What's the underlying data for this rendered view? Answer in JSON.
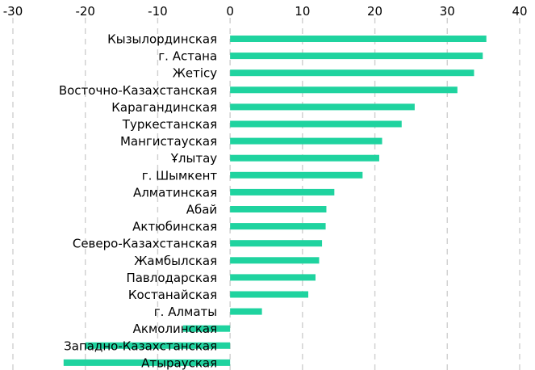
{
  "chart_data": {
    "type": "bar",
    "orientation": "horizontal",
    "title": "",
    "xlabel": "",
    "ylabel": "",
    "xlim": [
      -30,
      40
    ],
    "x_ticks": [
      -30,
      -20,
      -10,
      0,
      10,
      20,
      30,
      40
    ],
    "x_tick_labels": [
      "-30",
      "-20",
      "-10",
      "0",
      "10",
      "20",
      "30",
      "40"
    ],
    "x_axis_position": "top",
    "grid": "vertical dashed",
    "legend": "none",
    "bar_color": "#1fd39f",
    "categories": [
      "Кызылординская",
      "г. Астана",
      "Жетісу",
      "Восточно-Казахстанская",
      "Карагандинская",
      "Туркестанская",
      "Мангистауская",
      "Ұлытау",
      "г. Шымкент",
      "Алматинская",
      "Абай",
      "Актюбинская",
      "Северо-Казахстанская",
      "Жамбылская",
      "Павлодарская",
      "Костанайская",
      "г. Алматы",
      "Акмолинская",
      "Западно-Казахстанская",
      "Атырауская"
    ],
    "values": [
      35.4,
      34.9,
      33.7,
      31.4,
      25.5,
      23.7,
      21.0,
      20.6,
      18.3,
      14.4,
      13.3,
      13.2,
      12.7,
      12.3,
      11.8,
      10.8,
      4.4,
      -6.5,
      -20.0,
      -23.0
    ]
  }
}
